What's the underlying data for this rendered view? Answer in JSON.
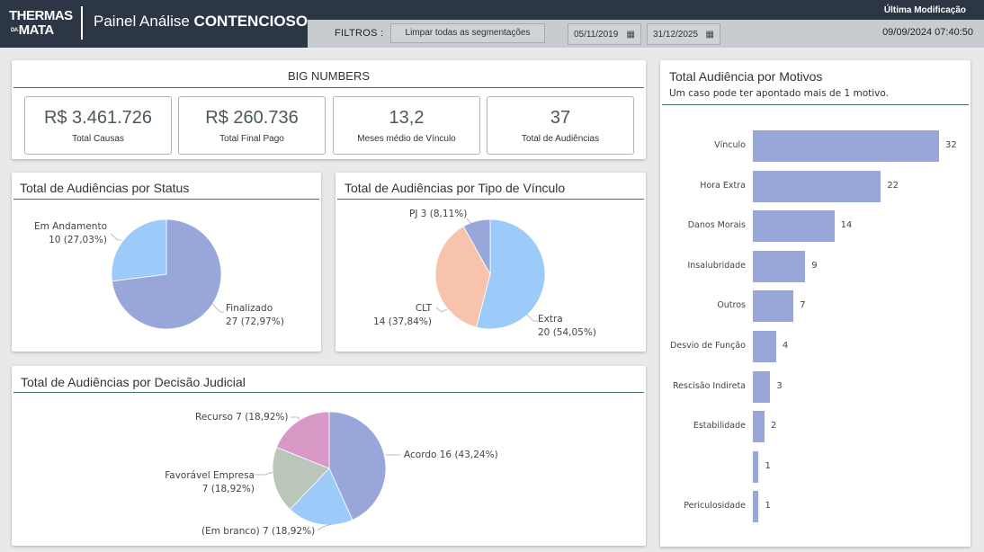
{
  "header": {
    "logo_top": "THERMAS",
    "logo_small": "DA",
    "logo_bottom": "MATA",
    "title_prefix": "Painel Análise",
    "title_bold": "CONTENCIOSO",
    "last_mod_label": "Última Modificação",
    "last_mod_value": "09/09/2024 07:40:50"
  },
  "filters": {
    "label": "FILTROS :",
    "clear_label": "Limpar todas as segmentações",
    "date_start": "05/11/2019",
    "date_end": "31/12/2025",
    "calendar_glyph": "▦"
  },
  "big_numbers": {
    "title": "BIG NUMBERS",
    "kpis": [
      {
        "value": "R$ 3.461.726",
        "label": "Total Causas"
      },
      {
        "value": "R$ 260.736",
        "label": "Total Final Pago"
      },
      {
        "value": "13,2",
        "label": "Meses médio de Vínculo"
      },
      {
        "value": "37",
        "label": "Total de Audiências"
      }
    ]
  },
  "colors": {
    "blue_violet": "#98a6da",
    "light_blue": "#9ccbfa",
    "peach": "#f7c3ac",
    "sage": "#b9c6b9",
    "pink": "#d999c7",
    "title_line": "#49705a"
  },
  "chart_data": [
    {
      "type": "pie",
      "title": "Total de Audiências por Status",
      "slices": [
        {
          "name": "Finalizado",
          "value": 27,
          "label": "27 (72,97%)",
          "color": "#98a6da"
        },
        {
          "name": "Em Andamento",
          "value": 10,
          "label": "10 (27,03%)",
          "color": "#9ccbfa"
        }
      ]
    },
    {
      "type": "pie",
      "title": "Total de Audiências por Tipo de Vínculo",
      "slices": [
        {
          "name": "Extra",
          "value": 20,
          "label": "20 (54,05%)",
          "color": "#9ccbfa"
        },
        {
          "name": "CLT",
          "value": 14,
          "label": "14 (37,84%)",
          "color": "#f7c3ac"
        },
        {
          "name": "PJ",
          "value": 3,
          "label": "PJ 3 (8,11%)",
          "color": "#98a6da"
        }
      ]
    },
    {
      "type": "pie",
      "title": "Total de Audiências por Decisão Judicial",
      "slices": [
        {
          "name": "Acordo",
          "value": 16,
          "label": "Acordo 16 (43,24%)",
          "color": "#98a6da"
        },
        {
          "name": "(Em branco)",
          "value": 7,
          "label": "(Em branco) 7 (18,92%)",
          "color": "#9ccbfa"
        },
        {
          "name": "Favorável Empresa",
          "value": 7,
          "label": "7 (18,92%)",
          "color": "#b9c6b9"
        },
        {
          "name": "Recurso",
          "value": 7,
          "label": "Recurso 7 (18,92%)",
          "color": "#d999c7"
        }
      ]
    },
    {
      "type": "bar",
      "orientation": "horizontal",
      "title": "Total Audiência por Motivos",
      "subtitle": "Um caso pode ter apontado mais de 1 motivo.",
      "categories": [
        "Vínculo",
        "Hora Extra",
        "Danos Morais",
        "Insalubridade",
        "Outros",
        "Desvio de Função",
        "Rescisão Indireta",
        "Estabilidade",
        "",
        "Periculosidade"
      ],
      "values": [
        32,
        22,
        14,
        9,
        7,
        4,
        3,
        2,
        1,
        1
      ],
      "xlim": [
        0,
        32
      ],
      "color": "#98a6da"
    }
  ]
}
